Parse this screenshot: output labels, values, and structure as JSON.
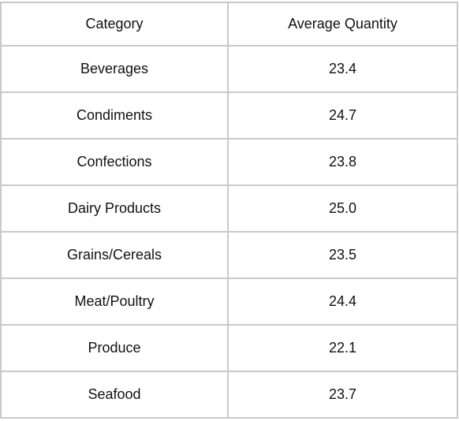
{
  "table": {
    "headers": [
      "Category",
      "Average Quantity"
    ],
    "rows": [
      {
        "category": "Beverages",
        "average_quantity": "23.4"
      },
      {
        "category": "Condiments",
        "average_quantity": "24.7"
      },
      {
        "category": "Confections",
        "average_quantity": "23.8"
      },
      {
        "category": "Dairy Products",
        "average_quantity": "25.0"
      },
      {
        "category": "Grains/Cereals",
        "average_quantity": "23.5"
      },
      {
        "category": "Meat/Poultry",
        "average_quantity": "24.4"
      },
      {
        "category": "Produce",
        "average_quantity": "22.1"
      },
      {
        "category": "Seafood",
        "average_quantity": "23.7"
      }
    ]
  }
}
